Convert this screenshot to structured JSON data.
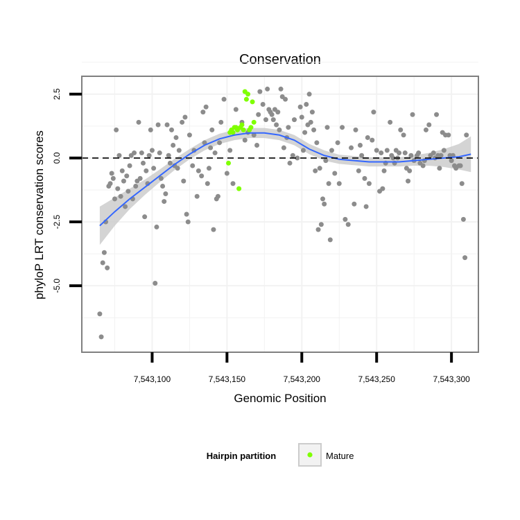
{
  "chart_data": {
    "type": "scatter",
    "title": "Conservation",
    "xlabel": "Genomic Position",
    "ylabel": "phyloP LRT conservation scores",
    "xlim": [
      7543053,
      7543318
    ],
    "ylim": [
      -7.6,
      3.2
    ],
    "x_ticks": [
      7543100,
      7543150,
      7543200,
      7543250,
      7543300
    ],
    "x_tick_labels": [
      "7,543,100",
      "7,543,150",
      "7,543,200",
      "7,543,250",
      "7,543,300"
    ],
    "y_ticks": [
      2.5,
      0.0,
      -2.5,
      -5.0
    ],
    "y_tick_labels": [
      "2.5",
      "0.0",
      "-2.5",
      "-5.0"
    ],
    "reference_line": {
      "y": 0,
      "style": "dashed",
      "color": "#000000"
    },
    "grid": true,
    "colors": {
      "other_points": "#8c8c8c",
      "mature_points": "#7fff00",
      "smooth_line": "#3366ff",
      "ribbon": "#cccccc",
      "panel_border": "#7f7f7f",
      "grid": "#f2f2f2"
    },
    "legend": {
      "position": "bottom",
      "title": "Hairpin partition",
      "entries": [
        {
          "label": "Mature",
          "color": "#7fff00"
        }
      ]
    },
    "series": [
      {
        "kind": "other",
        "points": [
          [
            7543065,
            -6.1
          ],
          [
            7543066,
            -7.0
          ],
          [
            7543067,
            -4.1
          ],
          [
            7543068,
            -3.7
          ],
          [
            7543069,
            -2.5
          ],
          [
            7543070,
            -4.3
          ],
          [
            7543071,
            -1.1
          ],
          [
            7543072,
            -1.0
          ],
          [
            7543073,
            -0.6
          ],
          [
            7543074,
            -0.8
          ],
          [
            7543075,
            -1.6
          ],
          [
            7543076,
            1.1
          ],
          [
            7543077,
            -1.2
          ],
          [
            7543078,
            0.1
          ],
          [
            7543079,
            -1.5
          ],
          [
            7543080,
            -0.5
          ],
          [
            7543081,
            -0.9
          ],
          [
            7543082,
            -1.9
          ],
          [
            7543083,
            -0.7
          ],
          [
            7543084,
            -1.3
          ],
          [
            7543085,
            -0.3
          ],
          [
            7543086,
            0.1
          ],
          [
            7543087,
            -1.6
          ],
          [
            7543088,
            0.2
          ],
          [
            7543089,
            -1.1
          ],
          [
            7543090,
            -0.9
          ],
          [
            7543091,
            1.4
          ],
          [
            7543092,
            -0.8
          ],
          [
            7543093,
            0.2
          ],
          [
            7543094,
            -0.2
          ],
          [
            7543095,
            -2.3
          ],
          [
            7543096,
            -0.5
          ],
          [
            7543097,
            -1.0
          ],
          [
            7543098,
            0.1
          ],
          [
            7543099,
            1.1
          ],
          [
            7543100,
            0.3
          ],
          [
            7543101,
            -0.4
          ],
          [
            7543102,
            -4.9
          ],
          [
            7543103,
            -2.7
          ],
          [
            7543104,
            1.3
          ],
          [
            7543105,
            0.2
          ],
          [
            7543106,
            -0.8
          ],
          [
            7543107,
            -1.1
          ],
          [
            7543108,
            -1.7
          ],
          [
            7543109,
            -1.4
          ],
          [
            7543110,
            1.3
          ],
          [
            7543111,
            0.1
          ],
          [
            7543112,
            -0.2
          ],
          [
            7543113,
            1.1
          ],
          [
            7543114,
            0.5
          ],
          [
            7543115,
            -0.3
          ],
          [
            7543116,
            0.8
          ],
          [
            7543117,
            -0.4
          ],
          [
            7543118,
            0.3
          ],
          [
            7543120,
            1.4
          ],
          [
            7543121,
            -0.9
          ],
          [
            7543122,
            1.6
          ],
          [
            7543123,
            -2.2
          ],
          [
            7543124,
            -2.5
          ],
          [
            7543125,
            0.9
          ],
          [
            7543127,
            -0.3
          ],
          [
            7543128,
            0.3
          ],
          [
            7543130,
            -1.5
          ],
          [
            7543131,
            -0.5
          ],
          [
            7543133,
            -0.7
          ],
          [
            7543134,
            1.8
          ],
          [
            7543135,
            0.6
          ],
          [
            7543136,
            2.0
          ],
          [
            7543137,
            -1.0
          ],
          [
            7543138,
            -0.4
          ],
          [
            7543139,
            0.4
          ],
          [
            7543140,
            1.1
          ],
          [
            7543141,
            -2.8
          ],
          [
            7543142,
            0.2
          ],
          [
            7543143,
            -1.6
          ],
          [
            7543144,
            -1.5
          ],
          [
            7543145,
            0.6
          ],
          [
            7543146,
            1.4
          ],
          [
            7543148,
            2.3
          ],
          [
            7543150,
            -0.6
          ],
          [
            7543152,
            0.3
          ],
          [
            7543154,
            -1.0
          ],
          [
            7543156,
            1.9
          ],
          [
            7543160,
            1.4
          ],
          [
            7543162,
            0.7
          ],
          [
            7543164,
            1.0
          ],
          [
            7543168,
            0.9
          ],
          [
            7543170,
            0.5
          ],
          [
            7543171,
            1.7
          ],
          [
            7543172,
            2.6
          ],
          [
            7543174,
            2.1
          ],
          [
            7543176,
            1.5
          ],
          [
            7543177,
            2.7
          ],
          [
            7543178,
            1.9
          ],
          [
            7543179,
            1.8
          ],
          [
            7543180,
            1.7
          ],
          [
            7543181,
            1.5
          ],
          [
            7543182,
            1.9
          ],
          [
            7543183,
            1.3
          ],
          [
            7543184,
            1.8
          ],
          [
            7543185,
            1.1
          ],
          [
            7543186,
            2.7
          ],
          [
            7543187,
            2.4
          ],
          [
            7543188,
            0.4
          ],
          [
            7543189,
            2.3
          ],
          [
            7543190,
            0.8
          ],
          [
            7543191,
            1.2
          ],
          [
            7543192,
            -0.2
          ],
          [
            7543194,
            0.1
          ],
          [
            7543195,
            1.5
          ],
          [
            7543197,
            0.0
          ],
          [
            7543199,
            2.0
          ],
          [
            7543200,
            1.6
          ],
          [
            7543201,
            0.3
          ],
          [
            7543202,
            1.0
          ],
          [
            7543203,
            2.1
          ],
          [
            7543204,
            1.3
          ],
          [
            7543205,
            2.5
          ],
          [
            7543206,
            1.4
          ],
          [
            7543207,
            1.8
          ],
          [
            7543208,
            1.1
          ],
          [
            7543209,
            -0.5
          ],
          [
            7543210,
            0.6
          ],
          [
            7543211,
            -2.8
          ],
          [
            7543212,
            -0.4
          ],
          [
            7543213,
            -2.6
          ],
          [
            7543214,
            -1.6
          ],
          [
            7543215,
            -1.8
          ],
          [
            7543216,
            -0.1
          ],
          [
            7543217,
            1.2
          ],
          [
            7543218,
            -1.0
          ],
          [
            7543219,
            -3.2
          ],
          [
            7543220,
            0.3
          ],
          [
            7543222,
            -0.6
          ],
          [
            7543224,
            0.6
          ],
          [
            7543225,
            -1.0
          ],
          [
            7543227,
            1.2
          ],
          [
            7543229,
            -2.4
          ],
          [
            7543231,
            -2.6
          ],
          [
            7543233,
            0.4
          ],
          [
            7543235,
            -1.8
          ],
          [
            7543236,
            1.1
          ],
          [
            7543238,
            -0.5
          ],
          [
            7543239,
            0.5
          ],
          [
            7543240,
            0.1
          ],
          [
            7543242,
            -0.8
          ],
          [
            7543243,
            -1.9
          ],
          [
            7543244,
            0.8
          ],
          [
            7543245,
            -1.0
          ],
          [
            7543247,
            0.7
          ],
          [
            7543248,
            1.8
          ],
          [
            7543250,
            0.3
          ],
          [
            7543252,
            -1.3
          ],
          [
            7543253,
            0.2
          ],
          [
            7543254,
            -1.2
          ],
          [
            7543255,
            -0.5
          ],
          [
            7543256,
            -0.2
          ],
          [
            7543257,
            0.3
          ],
          [
            7543259,
            1.4
          ],
          [
            7543260,
            0.1
          ],
          [
            7543261,
            0.0
          ],
          [
            7543262,
            -0.2
          ],
          [
            7543263,
            0.3
          ],
          [
            7543264,
            0.0
          ],
          [
            7543265,
            0.2
          ],
          [
            7543266,
            1.1
          ],
          [
            7543268,
            0.9
          ],
          [
            7543269,
            0.2
          ],
          [
            7543270,
            -0.4
          ],
          [
            7543271,
            -0.9
          ],
          [
            7543272,
            -0.5
          ],
          [
            7543273,
            0.1
          ],
          [
            7543274,
            1.7
          ],
          [
            7543275,
            -0.1
          ],
          [
            7543277,
            0.1
          ],
          [
            7543278,
            0.2
          ],
          [
            7543279,
            -0.2
          ],
          [
            7543281,
            -0.3
          ],
          [
            7543282,
            -0.1
          ],
          [
            7543283,
            1.1
          ],
          [
            7543285,
            1.3
          ],
          [
            7543286,
            0.1
          ],
          [
            7543288,
            0.2
          ],
          [
            7543289,
            0.0
          ],
          [
            7543290,
            1.7
          ],
          [
            7543291,
            0.1
          ],
          [
            7543292,
            -0.4
          ],
          [
            7543293,
            0.1
          ],
          [
            7543294,
            1.0
          ],
          [
            7543295,
            0.3
          ],
          [
            7543296,
            0.9
          ],
          [
            7543298,
            0.9
          ],
          [
            7543299,
            0.1
          ],
          [
            7543300,
            -0.1
          ],
          [
            7543301,
            0.1
          ],
          [
            7543302,
            -0.3
          ],
          [
            7543303,
            -0.4
          ],
          [
            7543305,
            -0.3
          ],
          [
            7543306,
            -0.3
          ],
          [
            7543307,
            -1.0
          ],
          [
            7543308,
            -2.4
          ],
          [
            7543309,
            -3.9
          ],
          [
            7543310,
            0.9
          ]
        ]
      },
      {
        "kind": "mature",
        "name": "Mature",
        "points": [
          [
            7543151,
            -0.2
          ],
          [
            7543152,
            1.0
          ],
          [
            7543153,
            1.1
          ],
          [
            7543154,
            1.0
          ],
          [
            7543155,
            1.2
          ],
          [
            7543156,
            1.2
          ],
          [
            7543157,
            1.1
          ],
          [
            7543158,
            -1.2
          ],
          [
            7543159,
            1.2
          ],
          [
            7543160,
            1.3
          ],
          [
            7543161,
            1.1
          ],
          [
            7543162,
            2.6
          ],
          [
            7543163,
            2.3
          ],
          [
            7543164,
            2.5
          ],
          [
            7543165,
            1.1
          ],
          [
            7543166,
            1.2
          ],
          [
            7543167,
            2.2
          ],
          [
            7543168,
            1.4
          ]
        ]
      }
    ],
    "smooth": {
      "x": [
        7543065,
        7543075,
        7543085,
        7543095,
        7543105,
        7543115,
        7543125,
        7543135,
        7543145,
        7543155,
        7543165,
        7543175,
        7543185,
        7543195,
        7543205,
        7543215,
        7543225,
        7543235,
        7543245,
        7543255,
        7543265,
        7543275,
        7543285,
        7543295,
        7543305,
        7543313
      ],
      "y": [
        -2.65,
        -2.1,
        -1.6,
        -1.15,
        -0.7,
        -0.25,
        0.15,
        0.5,
        0.75,
        0.9,
        0.98,
        0.98,
        0.9,
        0.7,
        0.35,
        0.1,
        -0.05,
        -0.1,
        -0.15,
        -0.15,
        -0.15,
        -0.1,
        -0.05,
        0.0,
        0.05,
        0.15
      ],
      "band": [
        0.75,
        0.55,
        0.4,
        0.3,
        0.25,
        0.22,
        0.2,
        0.2,
        0.2,
        0.2,
        0.2,
        0.2,
        0.2,
        0.2,
        0.2,
        0.2,
        0.18,
        0.18,
        0.18,
        0.18,
        0.18,
        0.2,
        0.25,
        0.35,
        0.5,
        0.7
      ]
    }
  }
}
